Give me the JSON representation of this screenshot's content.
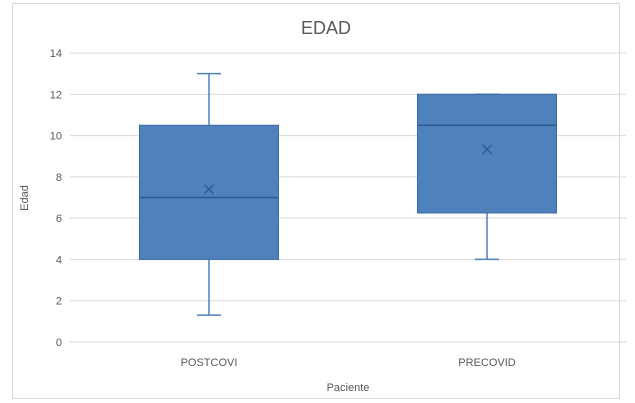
{
  "chart_data": {
    "type": "boxplot",
    "title": "EDAD",
    "xlabel": "Paciente",
    "ylabel": "Edad",
    "ylim": [
      0,
      14
    ],
    "yticks": [
      0,
      2,
      4,
      6,
      8,
      10,
      12,
      14
    ],
    "grid": true,
    "categories": [
      "POSTCOVI",
      "PRECOVID"
    ],
    "boxes": [
      {
        "category": "POSTCOVI",
        "min": 1.3,
        "q1": 4,
        "median": 7,
        "q3": 10.5,
        "max": 13,
        "mean": 7.4
      },
      {
        "category": "PRECOVID",
        "min": 4,
        "q1": 6.25,
        "median": 10.5,
        "q3": 12,
        "max": 12,
        "mean": 9.33
      }
    ],
    "colors": {
      "box_fill": "#4f81bd",
      "box_stroke": "#3a6aa5",
      "whisker": "#4f81bd",
      "grid": "#d9d9d9",
      "text": "#595959"
    }
  }
}
